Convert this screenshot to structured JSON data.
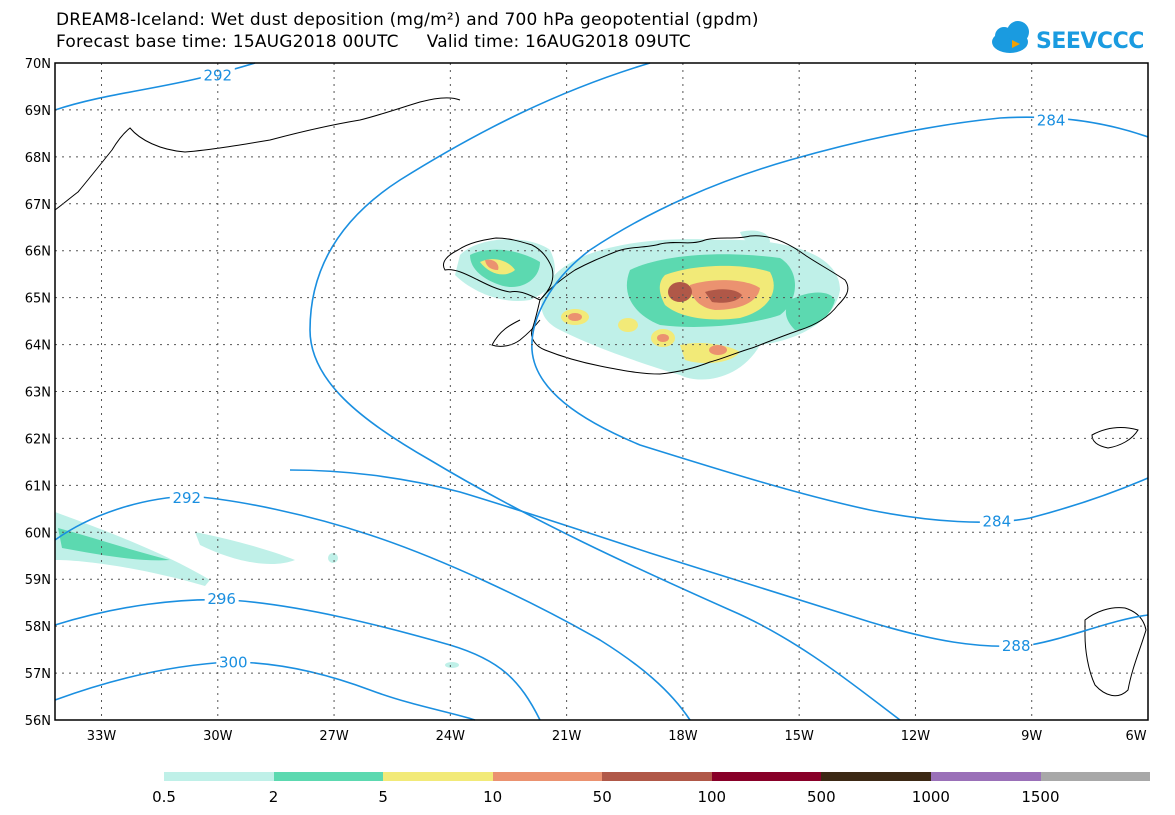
{
  "title": {
    "line1": "DREAM8-Iceland: Wet dust deposition (mg/m²) and 700 hPa geopotential (gpdm)",
    "line2": "Forecast base time: 15AUG2018 00UTC     Valid time: 16AUG2018 09UTC"
  },
  "logo": {
    "text": "SEEVCCC",
    "icon": "cloud-icon",
    "color": "#1a9be0"
  },
  "map": {
    "lon_range": [
      -34.2,
      -6
    ],
    "lat_range": [
      56,
      70
    ],
    "lat_ticks": [
      "70N",
      "69N",
      "68N",
      "67N",
      "66N",
      "65N",
      "64N",
      "63N",
      "62N",
      "61N",
      "60N",
      "59N",
      "58N",
      "57N",
      "56N"
    ],
    "lon_ticks": [
      "33W",
      "30W",
      "27W",
      "24W",
      "21W",
      "18W",
      "15W",
      "12W",
      "9W",
      "6W"
    ],
    "contour_color": "#1a8fe0",
    "contour_labels": [
      {
        "text": "292",
        "lon": -30.0,
        "lat": 69.75
      },
      {
        "text": "284",
        "lon": -8.5,
        "lat": 68.8
      },
      {
        "text": "292",
        "lon": -30.8,
        "lat": 60.75
      },
      {
        "text": "284",
        "lon": -9.9,
        "lat": 60.25
      },
      {
        "text": "296",
        "lon": -29.9,
        "lat": 58.6
      },
      {
        "text": "288",
        "lon": -9.4,
        "lat": 57.6
      },
      {
        "text": "300",
        "lon": -29.6,
        "lat": 57.25
      }
    ]
  },
  "legend": {
    "colors": [
      "#bff0e8",
      "#5cd9b0",
      "#f2ea78",
      "#eb9270",
      "#b05848",
      "#880028",
      "#3c2814",
      "#9a70b8",
      "#a8a8a8"
    ],
    "labels": [
      "0.5",
      "2",
      "5",
      "10",
      "50",
      "100",
      "500",
      "1000",
      "1500"
    ]
  }
}
